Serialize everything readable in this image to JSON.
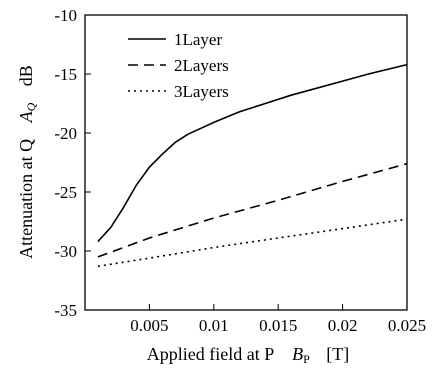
{
  "chart_data": {
    "type": "line",
    "title": "",
    "xlabel": "Applied field at P",
    "xlabel_symbol": "B",
    "xlabel_subscript": "P",
    "xlabel_unit": "[T]",
    "ylabel": "Attenuation at Q",
    "ylabel_symbol": "A",
    "ylabel_subscript": "Q",
    "ylabel_unit": "dB",
    "xlim": [
      0,
      0.025
    ],
    "ylim": [
      -35,
      -10
    ],
    "x_ticks": [
      0.005,
      0.01,
      0.015,
      0.02,
      0.025
    ],
    "x_tick_labels": [
      "0.005",
      "0.01",
      "0.015",
      "0.02",
      "0.025"
    ],
    "y_ticks": [
      -35,
      -30,
      -25,
      -20,
      -15,
      -10
    ],
    "y_tick_labels": [
      "-35",
      "-30",
      "-25",
      "-20",
      "-15",
      "-10"
    ],
    "grid": false,
    "legend_position": "top-left",
    "series": [
      {
        "name": "1Layer",
        "line_style": "solid",
        "color": "#000000",
        "x": [
          0.001,
          0.002,
          0.003,
          0.004,
          0.005,
          0.006,
          0.007,
          0.008,
          0.009,
          0.01,
          0.012,
          0.014,
          0.016,
          0.018,
          0.02,
          0.022,
          0.025
        ],
        "y": [
          -29.2,
          -28.0,
          -26.3,
          -24.4,
          -22.9,
          -21.8,
          -20.8,
          -20.1,
          -19.6,
          -19.1,
          -18.2,
          -17.5,
          -16.8,
          -16.2,
          -15.6,
          -15.0,
          -14.2
        ]
      },
      {
        "name": "2Layers",
        "line_style": "dashed",
        "color": "#000000",
        "x": [
          0.001,
          0.005,
          0.01,
          0.015,
          0.02,
          0.025
        ],
        "y": [
          -30.5,
          -28.9,
          -27.2,
          -25.7,
          -24.1,
          -22.6
        ]
      },
      {
        "name": "3Layers",
        "line_style": "dotted",
        "color": "#000000",
        "x": [
          0.001,
          0.005,
          0.01,
          0.015,
          0.02,
          0.025
        ],
        "y": [
          -31.3,
          -30.6,
          -29.7,
          -28.9,
          -28.1,
          -27.3
        ]
      }
    ]
  }
}
